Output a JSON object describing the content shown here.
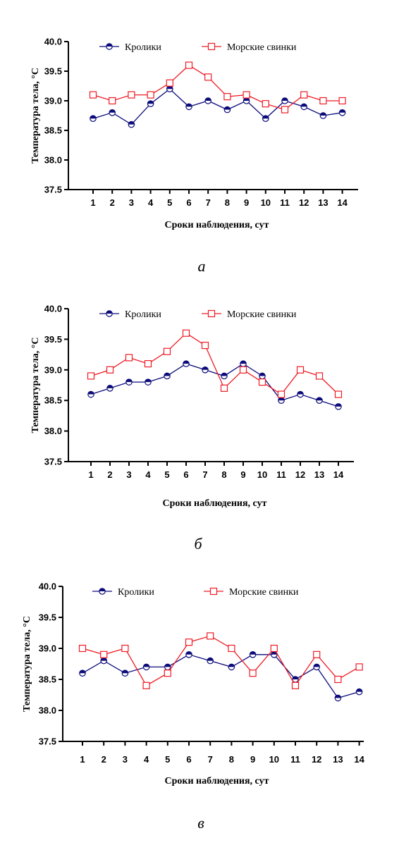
{
  "figure": {
    "panel_labels": [
      "а",
      "б",
      "в"
    ]
  },
  "colors": {
    "rabbits": "#0b0b7a",
    "guinea_pigs": "#ee1c25",
    "axis": "#000000"
  },
  "chart_data": [
    {
      "type": "line",
      "panel": "а",
      "xlabel": "Сроки наблюдения, сут",
      "ylabel": "Температура тела, °С",
      "x": [
        1,
        2,
        3,
        4,
        5,
        6,
        7,
        8,
        9,
        10,
        11,
        12,
        13,
        14
      ],
      "ylim": [
        37.5,
        40.0
      ],
      "yticks": [
        "37.5",
        "38.0",
        "38.5",
        "39.0",
        "39.5",
        "40.0"
      ],
      "legend_position": "top",
      "grid": false,
      "series": [
        {
          "name": "Кролики",
          "marker": "half-filled-circle",
          "color": "#0b0b7a",
          "values": [
            38.7,
            38.8,
            38.6,
            38.95,
            39.2,
            38.9,
            39.0,
            38.85,
            39.0,
            38.7,
            39.0,
            38.9,
            38.75,
            38.8
          ]
        },
        {
          "name": "Морские свинки",
          "marker": "open-square",
          "color": "#ee1c25",
          "values": [
            39.1,
            39.0,
            39.1,
            39.1,
            39.3,
            39.6,
            39.4,
            39.07,
            39.1,
            38.95,
            38.85,
            39.1,
            39.0,
            39.0
          ]
        }
      ]
    },
    {
      "type": "line",
      "panel": "б",
      "xlabel": "Сроки наблюдения, сут",
      "ylabel": "Температура тела, °С",
      "x": [
        1,
        2,
        3,
        4,
        5,
        6,
        7,
        8,
        9,
        10,
        11,
        12,
        13,
        14
      ],
      "ylim": [
        37.5,
        40.0
      ],
      "yticks": [
        "37.5",
        "38.0",
        "38.5",
        "39.0",
        "39.5",
        "40.0"
      ],
      "legend_position": "top",
      "grid": false,
      "series": [
        {
          "name": "Кролики",
          "marker": "half-filled-circle",
          "color": "#0b0b7a",
          "values": [
            38.6,
            38.7,
            38.8,
            38.8,
            38.9,
            39.1,
            39.0,
            38.9,
            39.1,
            38.9,
            38.5,
            38.6,
            38.5,
            38.4
          ]
        },
        {
          "name": "Морские свинки",
          "marker": "open-square",
          "color": "#ee1c25",
          "values": [
            38.9,
            39.0,
            39.2,
            39.1,
            39.3,
            39.6,
            39.4,
            38.7,
            39.0,
            38.8,
            38.6,
            39.0,
            38.9,
            38.6
          ]
        }
      ]
    },
    {
      "type": "line",
      "panel": "в",
      "xlabel": "Сроки наблюдения, сут",
      "ylabel": "Температура тела, °С",
      "x": [
        1,
        2,
        3,
        4,
        5,
        6,
        7,
        8,
        9,
        10,
        11,
        12,
        13,
        14
      ],
      "ylim": [
        37.5,
        40.0
      ],
      "yticks": [
        "37.5",
        "38.0",
        "38.5",
        "39.0",
        "39.5",
        "40.0"
      ],
      "legend_position": "top",
      "grid": false,
      "series": [
        {
          "name": "Кролики",
          "marker": "half-filled-circle",
          "color": "#0b0b7a",
          "values": [
            38.6,
            38.8,
            38.6,
            38.7,
            38.7,
            38.9,
            38.8,
            38.7,
            38.9,
            38.9,
            38.5,
            38.7,
            38.2,
            38.3
          ]
        },
        {
          "name": "Морские свинки",
          "marker": "open-square",
          "color": "#ee1c25",
          "values": [
            39.0,
            38.9,
            39.0,
            38.4,
            38.6,
            39.1,
            39.2,
            39.0,
            38.6,
            39.0,
            38.4,
            38.9,
            38.5,
            38.7
          ]
        }
      ]
    }
  ]
}
